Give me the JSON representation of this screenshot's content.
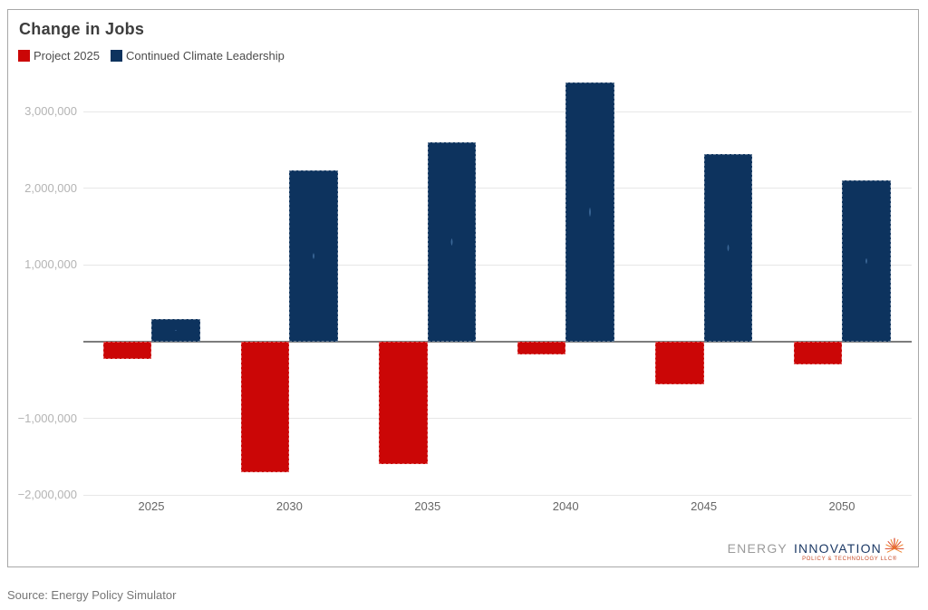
{
  "chart_data": {
    "type": "bar",
    "title": "Change in Jobs",
    "categories": [
      "2025",
      "2030",
      "2035",
      "2040",
      "2045",
      "2050"
    ],
    "series": [
      {
        "name": "Project 2025",
        "color": "#cb0606",
        "values": [
          -230000,
          -1700000,
          -1600000,
          -160000,
          -550000,
          -290000
        ]
      },
      {
        "name": "Continued Climate Leadership",
        "color": "#0d335e",
        "values": [
          290000,
          2230000,
          2600000,
          3380000,
          2450000,
          2100000
        ]
      }
    ],
    "y_ticks": [
      {
        "value": 3000000,
        "label": "3,000,000"
      },
      {
        "value": 2000000,
        "label": "2,000,000"
      },
      {
        "value": 1000000,
        "label": "1,000,000"
      },
      {
        "value": -1000000,
        "label": "−1,000,000"
      },
      {
        "value": -2000000,
        "label": "−2,000,000"
      }
    ],
    "ylim": [
      -2175000,
      3500000
    ],
    "xlabel": "",
    "ylabel": "",
    "grid": "horizontal",
    "legend_position": "top-left"
  },
  "logo": {
    "word1": "ENERGY",
    "word2": "INNOVATION",
    "tagline": "POLICY & TECHNOLOGY LLC®"
  },
  "source": {
    "text": "Source: Energy Policy Simulator"
  }
}
